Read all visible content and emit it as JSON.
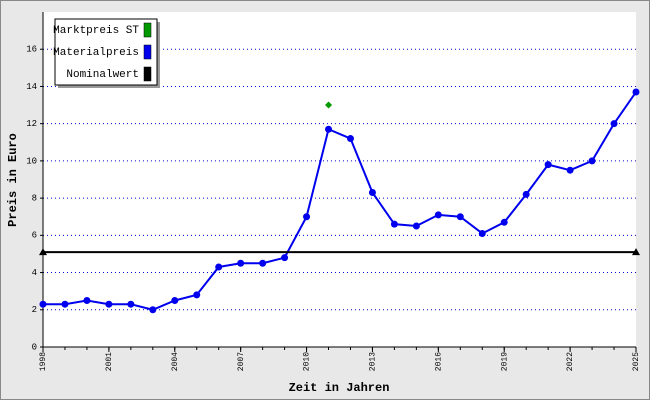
{
  "chart_data": {
    "type": "line",
    "xlabel": "Zeit in Jahren",
    "ylabel": "Preis in Euro",
    "xlim": [
      1998,
      2025
    ],
    "xticks": [
      1998,
      2001,
      2004,
      2007,
      2010,
      2013,
      2016,
      2019,
      2022,
      2025
    ],
    "ylim": [
      0,
      18
    ],
    "yticks": [
      0,
      2,
      4,
      6,
      8,
      10,
      12,
      14,
      16
    ],
    "grid": true,
    "legend": "upper left",
    "series": [
      {
        "name": "Marktpreis ST",
        "color": "#009900",
        "marker": "diamond",
        "line": false,
        "x": [
          2011
        ],
        "values": [
          13.0
        ]
      },
      {
        "name": "Materialpreis",
        "color": "#0000ee",
        "marker": "circle",
        "line": true,
        "x": [
          1998,
          1999,
          2000,
          2001,
          2002,
          2003,
          2004,
          2005,
          2006,
          2007,
          2008,
          2009,
          2010,
          2011,
          2012,
          2013,
          2014,
          2015,
          2016,
          2017,
          2018,
          2019,
          2020,
          2021,
          2022,
          2023,
          2024,
          2025
        ],
        "values": [
          2.3,
          2.3,
          2.5,
          2.3,
          2.3,
          2.0,
          2.5,
          2.8,
          4.3,
          4.5,
          4.5,
          4.8,
          7.0,
          11.7,
          11.2,
          8.3,
          6.6,
          6.5,
          7.1,
          7.0,
          6.1,
          6.7,
          8.2,
          9.8,
          9.5,
          10.0,
          12.0,
          13.7
        ]
      },
      {
        "name": "Nominalwert",
        "color": "#000000",
        "marker": "triangle",
        "line": true,
        "x": [
          1998,
          2025
        ],
        "values": [
          5.1,
          5.1
        ]
      }
    ]
  }
}
